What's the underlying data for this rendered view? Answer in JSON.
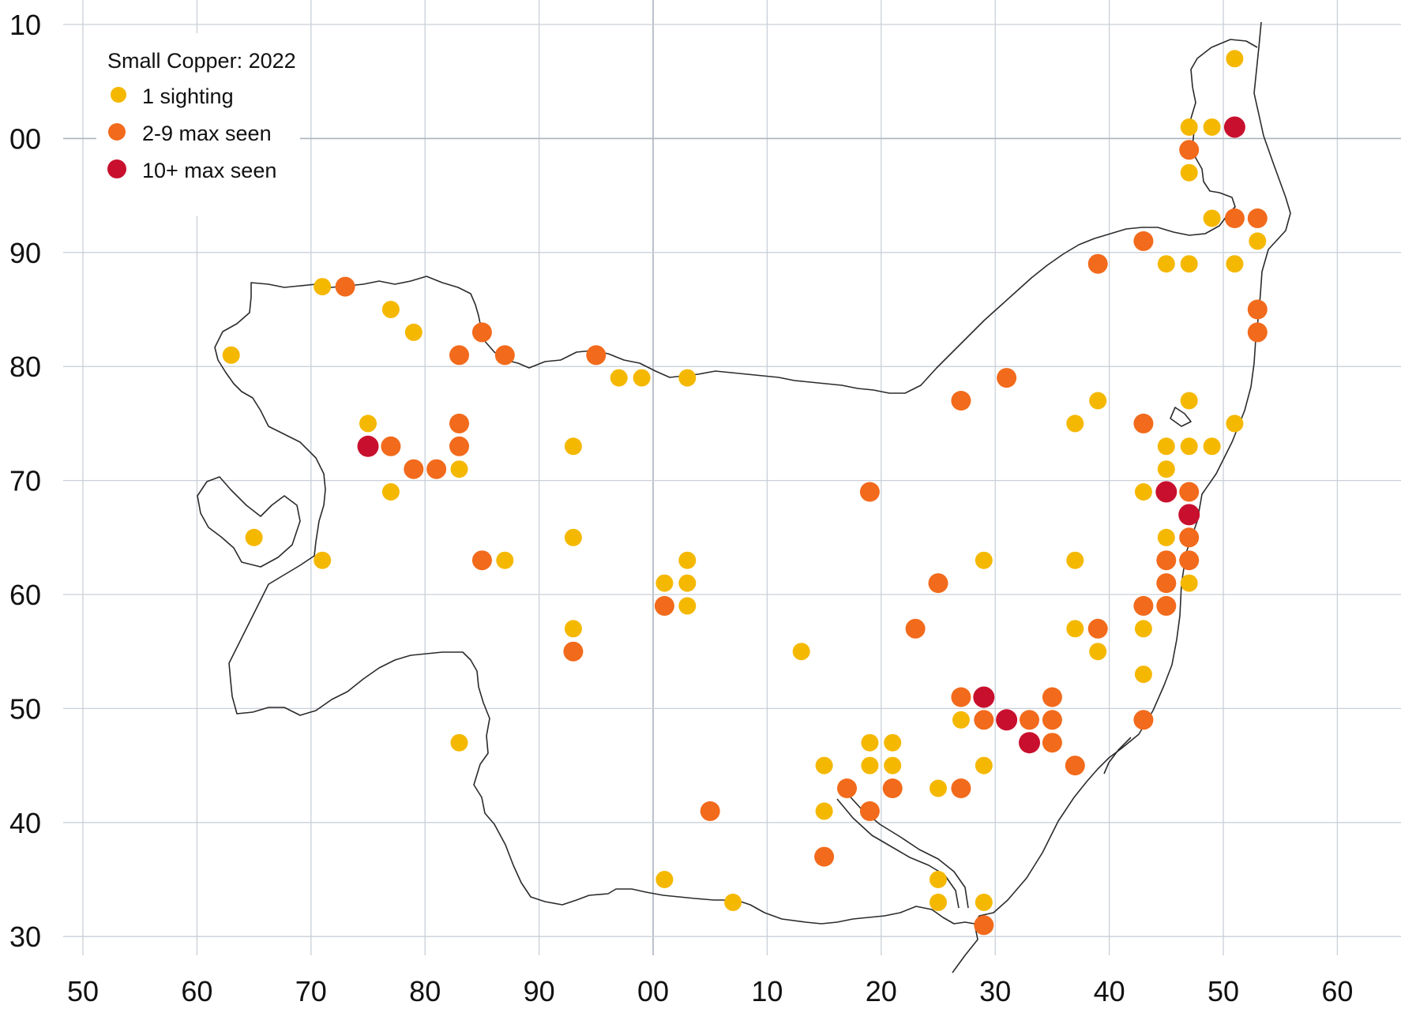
{
  "map": {
    "legend": {
      "title": "Small Copper:  2022",
      "entries": [
        {
          "label": "1 sighting",
          "category": "one",
          "color": "#f5b800"
        },
        {
          "label": "2-9 max seen",
          "category": "few",
          "color": "#f26a1b"
        },
        {
          "label": "10+ max seen",
          "category": "many",
          "color": "#c8102e"
        }
      ]
    },
    "x_ticks": [
      "50",
      "60",
      "70",
      "80",
      "90",
      "00",
      "10",
      "20",
      "30",
      "40",
      "50",
      "60"
    ],
    "y_ticks": [
      "10",
      "00",
      "90",
      "80",
      "70",
      "60",
      "50",
      "40",
      "30"
    ],
    "easting_range": [
      50,
      162
    ],
    "northing_range": [
      228,
      310
    ],
    "sightings": [
      {
        "e": 151,
        "n": 307,
        "c": "one"
      },
      {
        "e": 147,
        "n": 301,
        "c": "one"
      },
      {
        "e": 149,
        "n": 301,
        "c": "one"
      },
      {
        "e": 151,
        "n": 301,
        "c": "many"
      },
      {
        "e": 147,
        "n": 299,
        "c": "few"
      },
      {
        "e": 147,
        "n": 297,
        "c": "one"
      },
      {
        "e": 149,
        "n": 293,
        "c": "one"
      },
      {
        "e": 151,
        "n": 293,
        "c": "few"
      },
      {
        "e": 153,
        "n": 293,
        "c": "few"
      },
      {
        "e": 143,
        "n": 291,
        "c": "few"
      },
      {
        "e": 153,
        "n": 291,
        "c": "one"
      },
      {
        "e": 139,
        "n": 289,
        "c": "few"
      },
      {
        "e": 145,
        "n": 289,
        "c": "one"
      },
      {
        "e": 147,
        "n": 289,
        "c": "one"
      },
      {
        "e": 151,
        "n": 289,
        "c": "one"
      },
      {
        "e": 71,
        "n": 287,
        "c": "one"
      },
      {
        "e": 73,
        "n": 287,
        "c": "few"
      },
      {
        "e": 77,
        "n": 285,
        "c": "one"
      },
      {
        "e": 153,
        "n": 285,
        "c": "few"
      },
      {
        "e": 79,
        "n": 283,
        "c": "one"
      },
      {
        "e": 85,
        "n": 283,
        "c": "few"
      },
      {
        "e": 153,
        "n": 283,
        "c": "few"
      },
      {
        "e": 63,
        "n": 281,
        "c": "one"
      },
      {
        "e": 83,
        "n": 281,
        "c": "few"
      },
      {
        "e": 87,
        "n": 281,
        "c": "few"
      },
      {
        "e": 95,
        "n": 281,
        "c": "few"
      },
      {
        "e": 97,
        "n": 279,
        "c": "one"
      },
      {
        "e": 99,
        "n": 279,
        "c": "one"
      },
      {
        "e": 103,
        "n": 279,
        "c": "one"
      },
      {
        "e": 131,
        "n": 279,
        "c": "few"
      },
      {
        "e": 127,
        "n": 277,
        "c": "few"
      },
      {
        "e": 139,
        "n": 277,
        "c": "one"
      },
      {
        "e": 147,
        "n": 277,
        "c": "one"
      },
      {
        "e": 75,
        "n": 275,
        "c": "one"
      },
      {
        "e": 83,
        "n": 275,
        "c": "few"
      },
      {
        "e": 137,
        "n": 275,
        "c": "one"
      },
      {
        "e": 143,
        "n": 275,
        "c": "few"
      },
      {
        "e": 151,
        "n": 275,
        "c": "one"
      },
      {
        "e": 75,
        "n": 273,
        "c": "many"
      },
      {
        "e": 77,
        "n": 273,
        "c": "few"
      },
      {
        "e": 83,
        "n": 273,
        "c": "few"
      },
      {
        "e": 93,
        "n": 273,
        "c": "one"
      },
      {
        "e": 145,
        "n": 273,
        "c": "one"
      },
      {
        "e": 147,
        "n": 273,
        "c": "one"
      },
      {
        "e": 149,
        "n": 273,
        "c": "one"
      },
      {
        "e": 79,
        "n": 271,
        "c": "few"
      },
      {
        "e": 81,
        "n": 271,
        "c": "few"
      },
      {
        "e": 83,
        "n": 271,
        "c": "one"
      },
      {
        "e": 145,
        "n": 271,
        "c": "one"
      },
      {
        "e": 77,
        "n": 269,
        "c": "one"
      },
      {
        "e": 119,
        "n": 269,
        "c": "few"
      },
      {
        "e": 143,
        "n": 269,
        "c": "one"
      },
      {
        "e": 145,
        "n": 269,
        "c": "many"
      },
      {
        "e": 147,
        "n": 269,
        "c": "few"
      },
      {
        "e": 147,
        "n": 267,
        "c": "many"
      },
      {
        "e": 65,
        "n": 265,
        "c": "one"
      },
      {
        "e": 93,
        "n": 265,
        "c": "one"
      },
      {
        "e": 145,
        "n": 265,
        "c": "one"
      },
      {
        "e": 147,
        "n": 265,
        "c": "few"
      },
      {
        "e": 71,
        "n": 263,
        "c": "one"
      },
      {
        "e": 85,
        "n": 263,
        "c": "few"
      },
      {
        "e": 87,
        "n": 263,
        "c": "one"
      },
      {
        "e": 103,
        "n": 263,
        "c": "one"
      },
      {
        "e": 129,
        "n": 263,
        "c": "one"
      },
      {
        "e": 137,
        "n": 263,
        "c": "one"
      },
      {
        "e": 145,
        "n": 263,
        "c": "few"
      },
      {
        "e": 147,
        "n": 263,
        "c": "few"
      },
      {
        "e": 101,
        "n": 261,
        "c": "one"
      },
      {
        "e": 103,
        "n": 261,
        "c": "one"
      },
      {
        "e": 125,
        "n": 261,
        "c": "few"
      },
      {
        "e": 145,
        "n": 261,
        "c": "few"
      },
      {
        "e": 147,
        "n": 261,
        "c": "one"
      },
      {
        "e": 101,
        "n": 259,
        "c": "few"
      },
      {
        "e": 103,
        "n": 259,
        "c": "one"
      },
      {
        "e": 143,
        "n": 259,
        "c": "few"
      },
      {
        "e": 145,
        "n": 259,
        "c": "few"
      },
      {
        "e": 93,
        "n": 257,
        "c": "one"
      },
      {
        "e": 123,
        "n": 257,
        "c": "few"
      },
      {
        "e": 137,
        "n": 257,
        "c": "one"
      },
      {
        "e": 139,
        "n": 257,
        "c": "few"
      },
      {
        "e": 143,
        "n": 257,
        "c": "one"
      },
      {
        "e": 93,
        "n": 255,
        "c": "few"
      },
      {
        "e": 113,
        "n": 255,
        "c": "one"
      },
      {
        "e": 139,
        "n": 255,
        "c": "one"
      },
      {
        "e": 143,
        "n": 253,
        "c": "one"
      },
      {
        "e": 127,
        "n": 251,
        "c": "few"
      },
      {
        "e": 129,
        "n": 251,
        "c": "many"
      },
      {
        "e": 135,
        "n": 251,
        "c": "few"
      },
      {
        "e": 127,
        "n": 249,
        "c": "one"
      },
      {
        "e": 129,
        "n": 249,
        "c": "few"
      },
      {
        "e": 131,
        "n": 249,
        "c": "many"
      },
      {
        "e": 133,
        "n": 249,
        "c": "few"
      },
      {
        "e": 135,
        "n": 249,
        "c": "few"
      },
      {
        "e": 143,
        "n": 249,
        "c": "few"
      },
      {
        "e": 83,
        "n": 247,
        "c": "one"
      },
      {
        "e": 119,
        "n": 247,
        "c": "one"
      },
      {
        "e": 121,
        "n": 247,
        "c": "one"
      },
      {
        "e": 133,
        "n": 247,
        "c": "many"
      },
      {
        "e": 135,
        "n": 247,
        "c": "few"
      },
      {
        "e": 115,
        "n": 245,
        "c": "one"
      },
      {
        "e": 119,
        "n": 245,
        "c": "one"
      },
      {
        "e": 121,
        "n": 245,
        "c": "one"
      },
      {
        "e": 129,
        "n": 245,
        "c": "one"
      },
      {
        "e": 137,
        "n": 245,
        "c": "few"
      },
      {
        "e": 117,
        "n": 243,
        "c": "few"
      },
      {
        "e": 121,
        "n": 243,
        "c": "few"
      },
      {
        "e": 125,
        "n": 243,
        "c": "one"
      },
      {
        "e": 127,
        "n": 243,
        "c": "few"
      },
      {
        "e": 105,
        "n": 241,
        "c": "few"
      },
      {
        "e": 115,
        "n": 241,
        "c": "one"
      },
      {
        "e": 119,
        "n": 241,
        "c": "few"
      },
      {
        "e": 115,
        "n": 237,
        "c": "few"
      },
      {
        "e": 101,
        "n": 235,
        "c": "one"
      },
      {
        "e": 125,
        "n": 235,
        "c": "one"
      },
      {
        "e": 107,
        "n": 233,
        "c": "one"
      },
      {
        "e": 125,
        "n": 233,
        "c": "one"
      },
      {
        "e": 129,
        "n": 233,
        "c": "one"
      },
      {
        "e": 129,
        "n": 231,
        "c": "few"
      }
    ]
  }
}
